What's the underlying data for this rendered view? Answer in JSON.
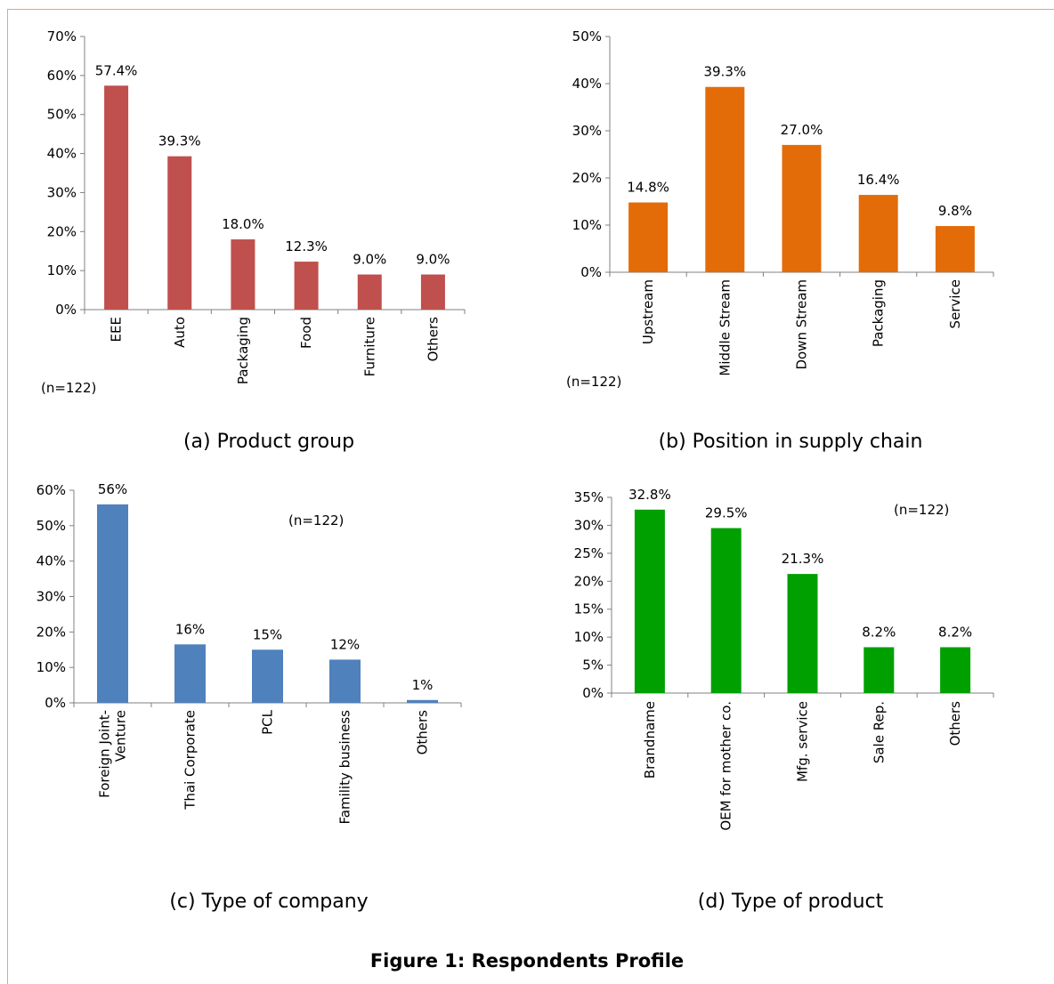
{
  "figure_title": "Figure 1: Respondents Profile",
  "chart_data": [
    {
      "id": "a",
      "type": "bar",
      "caption": "(a) Product group",
      "note": "(n=122)",
      "color": "#c0504d",
      "categories": [
        "EEE",
        "Auto",
        "Packaging",
        "Food",
        "Furniture",
        "Others"
      ],
      "values": [
        57.4,
        39.3,
        18.0,
        12.3,
        9.0,
        9.0
      ],
      "data_labels": [
        "57.4%",
        "39.3%",
        "18.0%",
        "12.3%",
        "9.0%",
        "9.0%"
      ],
      "yticks": [
        "0%",
        "10%",
        "20%",
        "30%",
        "40%",
        "50%",
        "60%",
        "70%"
      ],
      "ylim": [
        0,
        70
      ]
    },
    {
      "id": "b",
      "type": "bar",
      "caption": "(b) Position in supply chain",
      "note": "(n=122)",
      "color": "#e36c09",
      "categories": [
        "Upstream",
        "Middle Stream",
        "Down Stream",
        "Packaging",
        "Service"
      ],
      "values": [
        14.8,
        39.3,
        27.0,
        16.4,
        9.8
      ],
      "data_labels": [
        "14.8%",
        "39.3%",
        "27.0%",
        "16.4%",
        "9.8%"
      ],
      "yticks": [
        "0%",
        "10%",
        "20%",
        "30%",
        "40%",
        "50%"
      ],
      "ylim": [
        0,
        50
      ]
    },
    {
      "id": "c",
      "type": "bar",
      "caption": "(c) Type of company",
      "note": "(n=122)",
      "color": "#4f81bd",
      "categories": [
        "Foreign Joint-|Venture",
        "Thai Corporate",
        "PCL",
        "Famility business",
        "Others"
      ],
      "values": [
        56,
        16.5,
        15,
        12.2,
        0.8
      ],
      "data_labels": [
        "56%",
        "16%",
        "15%",
        "12%",
        "1%"
      ],
      "yticks": [
        "0%",
        "10%",
        "20%",
        "30%",
        "40%",
        "50%",
        "60%"
      ],
      "ylim": [
        0,
        60
      ]
    },
    {
      "id": "d",
      "type": "bar",
      "caption": "(d) Type of product",
      "note": "(n=122)",
      "color": "#00a000",
      "categories": [
        "Brandname",
        "OEM for mother co.",
        "Mfg. service",
        "Sale Rep.",
        "Others"
      ],
      "values": [
        32.8,
        29.5,
        21.3,
        8.2,
        8.2
      ],
      "data_labels": [
        "32.8%",
        "29.5%",
        "21.3%",
        "8.2%",
        "8.2%"
      ],
      "yticks": [
        "0%",
        "5%",
        "10%",
        "15%",
        "20%",
        "25%",
        "30%",
        "35%"
      ],
      "ylim": [
        0,
        35
      ]
    }
  ]
}
